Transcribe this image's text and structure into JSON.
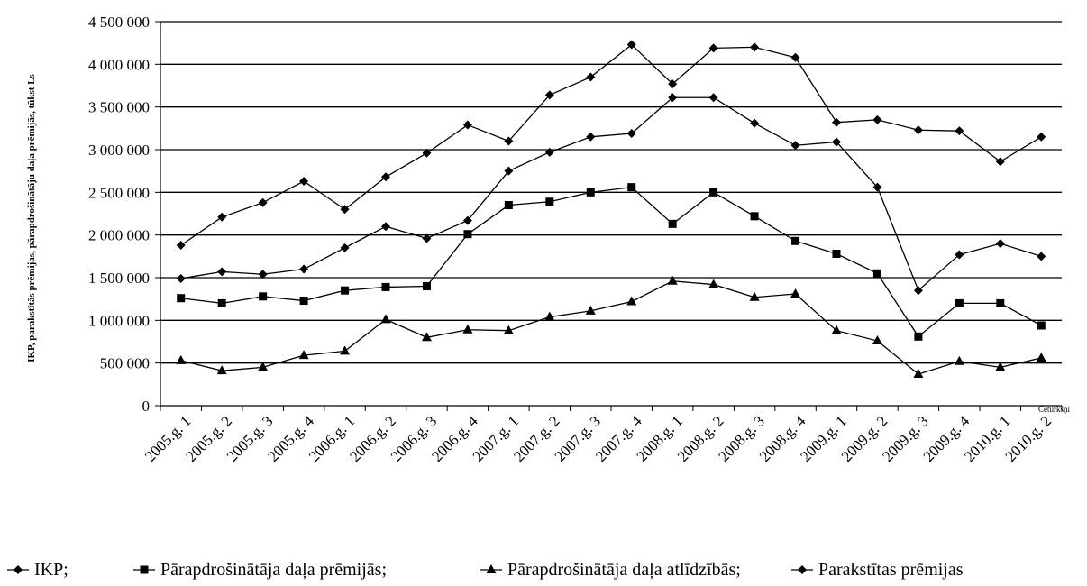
{
  "chart_data": {
    "type": "line",
    "title": "",
    "xlabel": "Ceturkšņi",
    "ylabel": "IKP, parakstītās prēmijas, pārapdrošinātāju daļa prēmijās, tūkst Ls",
    "ylim": [
      0,
      4500000
    ],
    "yticks": [
      "0",
      "500 000",
      "1 000 000",
      "1 500 000",
      "2 000 000",
      "2 500 000",
      "3 000 000",
      "3 500 000",
      "4 000 000",
      "4 500 000"
    ],
    "ytick_values": [
      0,
      500000,
      1000000,
      1500000,
      2000000,
      2500000,
      3000000,
      3500000,
      4000000,
      4500000
    ],
    "grid": true,
    "legend_position": "bottom",
    "categories": [
      "2005.g. 1",
      "2005.g. 2",
      "2005.g. 3",
      "2005.g. 4",
      "2006.g. 1",
      "2006.g. 2",
      "2006.g. 3",
      "2006.g. 4",
      "2007.g. 1",
      "2007.g. 2",
      "2007.g. 3",
      "2007.g. 4",
      "2008.g. 1",
      "2008.g. 2",
      "2008.g. 3",
      "2008.g. 4",
      "2009.g. 1",
      "2009.g. 2",
      "2009.g. 3",
      "2009.g. 4",
      "2010.g. 1",
      "2010.g. 2"
    ],
    "series": [
      {
        "name": "IKP;",
        "marker": "diamond",
        "values": [
          1880000,
          2210000,
          2380000,
          2630000,
          2300000,
          2680000,
          2960000,
          3290000,
          3100000,
          3640000,
          3850000,
          4230000,
          3770000,
          4190000,
          4200000,
          4080000,
          3320000,
          3350000,
          3230000,
          3220000,
          2860000,
          3150000
        ]
      },
      {
        "name": "Pārapdrošinātāja daļa prēmijās;",
        "marker": "square",
        "values": [
          1260000,
          1200000,
          1280000,
          1230000,
          1350000,
          1390000,
          1400000,
          2010000,
          2350000,
          2390000,
          2500000,
          2560000,
          2130000,
          2500000,
          2220000,
          1930000,
          1780000,
          1550000,
          810000,
          1200000,
          1200000,
          940000
        ]
      },
      {
        "name": "Pārapdrošinātāja daļa atlīdzībās;",
        "marker": "triangle",
        "values": [
          530000,
          410000,
          450000,
          590000,
          640000,
          1010000,
          800000,
          890000,
          880000,
          1040000,
          1110000,
          1220000,
          1460000,
          1420000,
          1270000,
          1310000,
          880000,
          760000,
          370000,
          520000,
          450000,
          560000
        ]
      },
      {
        "name": "Parakstītas prēmijas",
        "marker": "diamond",
        "values": [
          1490000,
          1570000,
          1540000,
          1600000,
          1850000,
          2100000,
          1960000,
          2170000,
          2750000,
          2970000,
          3150000,
          3190000,
          3610000,
          3610000,
          3310000,
          3050000,
          3090000,
          2560000,
          1350000,
          1770000,
          1900000,
          1750000
        ]
      }
    ]
  }
}
